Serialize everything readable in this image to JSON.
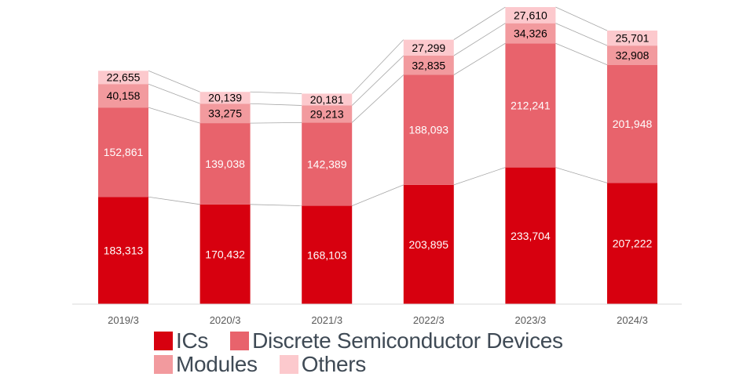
{
  "chart_data": {
    "type": "bar",
    "stacked": true,
    "categories": [
      "2019/3",
      "2020/3",
      "2021/3",
      "2022/3",
      "2023/3",
      "2024/3"
    ],
    "series": [
      {
        "name": "ICs",
        "color": "#d7000f",
        "label_color": "#ffffff",
        "values": [
          183313,
          170432,
          168103,
          203895,
          233704,
          207222
        ],
        "labels": [
          "183,313",
          "170,432",
          "168,103",
          "203,895",
          "233,704",
          "207,222"
        ]
      },
      {
        "name": "Discrete Semiconductor Devices",
        "color": "#e8636c",
        "label_color": "#ffffff",
        "values": [
          152861,
          139038,
          142389,
          188093,
          212241,
          201948
        ],
        "labels": [
          "152,861",
          "139,038",
          "142,389",
          "188,093",
          "212,241",
          "201,948"
        ]
      },
      {
        "name": "Modules",
        "color": "#f29a9e",
        "label_color": "#000000",
        "values": [
          40158,
          33275,
          29213,
          32835,
          34326,
          32908
        ],
        "labels": [
          "40,158",
          "33,275",
          "29,213",
          "32,835",
          "34,326",
          "32,908"
        ]
      },
      {
        "name": "Others",
        "color": "#fcc9cd",
        "label_color": "#000000",
        "values": [
          22655,
          20139,
          20181,
          27299,
          27610,
          25701
        ],
        "labels": [
          "22,655",
          "20,139",
          "20,181",
          "27,299",
          "27,610",
          "25,701"
        ]
      }
    ],
    "ylim": [
      0,
      520000
    ],
    "title": "",
    "xlabel": "",
    "ylabel": "",
    "grid": false,
    "legend_position": "bottom"
  }
}
